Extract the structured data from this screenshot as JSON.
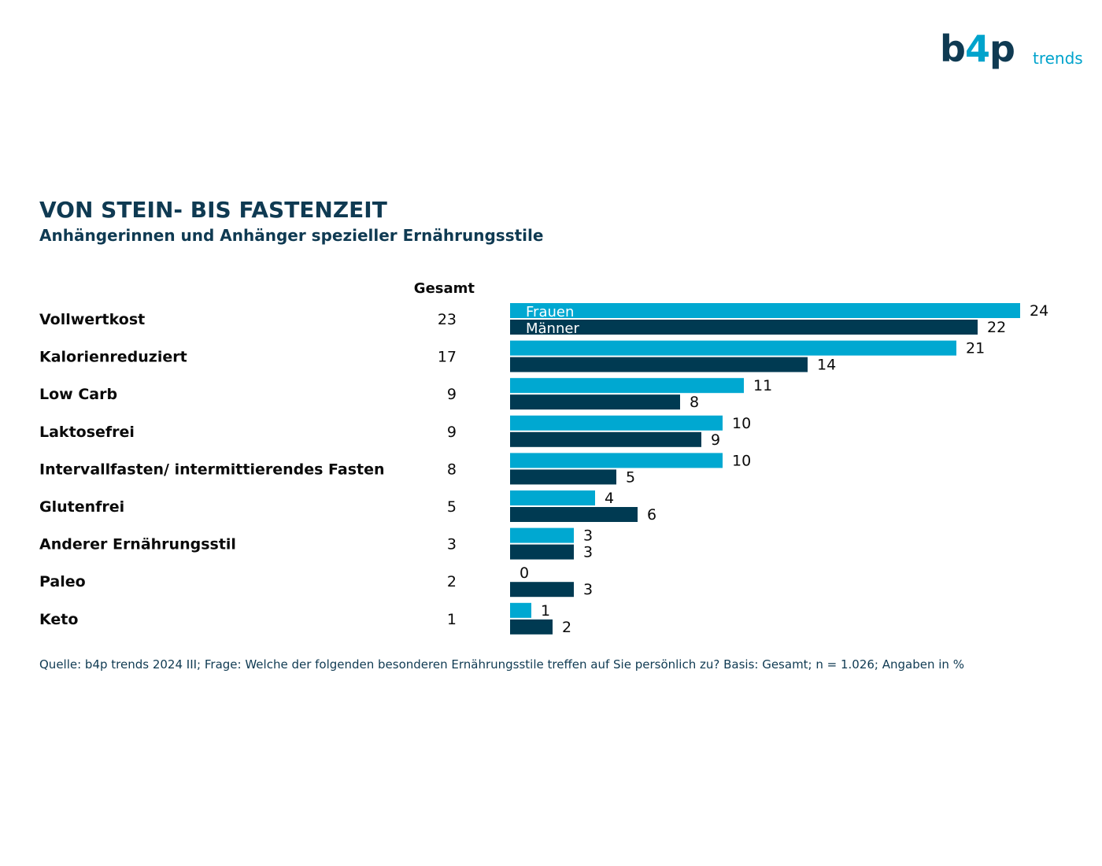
{
  "logo": {
    "mark_main": "b",
    "mark_plus": "4",
    "mark_end": "p",
    "word": "trends"
  },
  "title": "VON STEIN- BIS FASTENZEIT",
  "subtitle": "Anhängerinnen und Anhänger spezieller Ernährungsstile",
  "source": "Quelle: b4p trends 2024 III; Frage: Welche der folgenden besonderen Ernährungsstile treffen auf Sie persönlich zu? Basis: Gesamt; n = 1.026; Angaben in %",
  "colors": {
    "frauen": "#00a8d1",
    "maenner": "#003a52",
    "text_dark": "#0f3a52"
  },
  "chart_data": {
    "type": "bar",
    "orientation": "horizontal",
    "categories": [
      "Vollwertkost",
      "Kalorienreduziert",
      "Low Carb",
      "Laktosefrei",
      "Intervallfasten/ intermittierendes Fasten",
      "Glutenfrei",
      "Anderer Ernährungsstil",
      "Paleo",
      "Keto"
    ],
    "total_label": "Gesamt",
    "totals": [
      23,
      17,
      9,
      9,
      8,
      5,
      3,
      2,
      1
    ],
    "series": [
      {
        "name": "Frauen",
        "values": [
          24,
          21,
          11,
          10,
          10,
          4,
          3,
          0,
          1
        ]
      },
      {
        "name": "Männer",
        "values": [
          22,
          14,
          8,
          9,
          5,
          6,
          3,
          3,
          2
        ]
      }
    ],
    "xlim": [
      0,
      24
    ],
    "legend": "inside-first-bars",
    "grid": false
  }
}
